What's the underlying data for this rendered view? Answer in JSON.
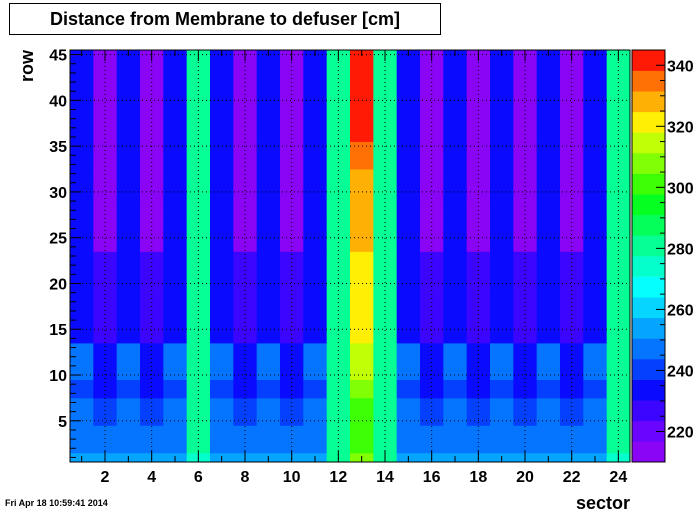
{
  "title": "Distance from Membrane to defuser [cm]",
  "timestamp": "Fri Apr 18 10:59:41 2014",
  "chart_data": {
    "type": "heatmap",
    "title": "Distance from Membrane to defuser [cm]",
    "xlabel": "sector",
    "ylabel": "row",
    "xlim": [
      0.5,
      24.5
    ],
    "ylim": [
      0.5,
      45.5
    ],
    "zlim": [
      210,
      345
    ],
    "grid": true,
    "x_ticks": [
      2,
      4,
      6,
      8,
      10,
      12,
      14,
      16,
      18,
      20,
      22,
      24
    ],
    "y_ticks": [
      5,
      10,
      15,
      20,
      25,
      30,
      35,
      40,
      45
    ],
    "z_ticks": [
      220,
      240,
      260,
      280,
      300,
      320,
      340
    ],
    "x": [
      1,
      2,
      3,
      4,
      5,
      6,
      7,
      8,
      9,
      10,
      11,
      12,
      13,
      14,
      15,
      16,
      17,
      18,
      19,
      20,
      21,
      22,
      23,
      24
    ],
    "y_bins": [
      {
        "from": 1,
        "to": 1
      },
      {
        "from": 2,
        "to": 4
      },
      {
        "from": 5,
        "to": 7
      },
      {
        "from": 8,
        "to": 9
      },
      {
        "from": 10,
        "to": 13
      },
      {
        "from": 14,
        "to": 23
      },
      {
        "from": 24,
        "to": 45
      }
    ],
    "z": [
      [
        256,
        253,
        256,
        253,
        256,
        275,
        256,
        253,
        256,
        253,
        256,
        278,
        305,
        278,
        256,
        253,
        256,
        253,
        256,
        253,
        256,
        253,
        256,
        275
      ],
      [
        250,
        246,
        250,
        246,
        250,
        283,
        250,
        246,
        250,
        246,
        250,
        284,
        300,
        284,
        250,
        246,
        250,
        246,
        250,
        246,
        250,
        246,
        250,
        283
      ],
      [
        245,
        241,
        245,
        241,
        245,
        283,
        245,
        241,
        245,
        241,
        245,
        284,
        300,
        284,
        245,
        241,
        245,
        241,
        245,
        241,
        245,
        241,
        245,
        283
      ],
      [
        241,
        236,
        241,
        236,
        241,
        283,
        241,
        236,
        241,
        236,
        241,
        284,
        305,
        284,
        241,
        236,
        241,
        236,
        241,
        236,
        241,
        236,
        241,
        283
      ],
      [
        245,
        231,
        245,
        231,
        245,
        283,
        245,
        231,
        245,
        231,
        245,
        284,
        315,
        284,
        245,
        231,
        245,
        231,
        245,
        231,
        245,
        231,
        245,
        283
      ],
      [
        236,
        226,
        236,
        226,
        236,
        283,
        236,
        226,
        236,
        226,
        236,
        284,
        320,
        284,
        236,
        226,
        236,
        226,
        236,
        226,
        236,
        226,
        236,
        283
      ],
      [
        236,
        216,
        236,
        216,
        236,
        283,
        236,
        216,
        236,
        216,
        236,
        284,
        330,
        284,
        236,
        216,
        236,
        216,
        236,
        216,
        236,
        216,
        236,
        283
      ]
    ],
    "z_overrides": [
      {
        "x": 13,
        "y_from": 36,
        "y_to": 45,
        "z": 342
      },
      {
        "x": 13,
        "y_from": 33,
        "y_to": 35,
        "z": 335
      }
    ]
  }
}
